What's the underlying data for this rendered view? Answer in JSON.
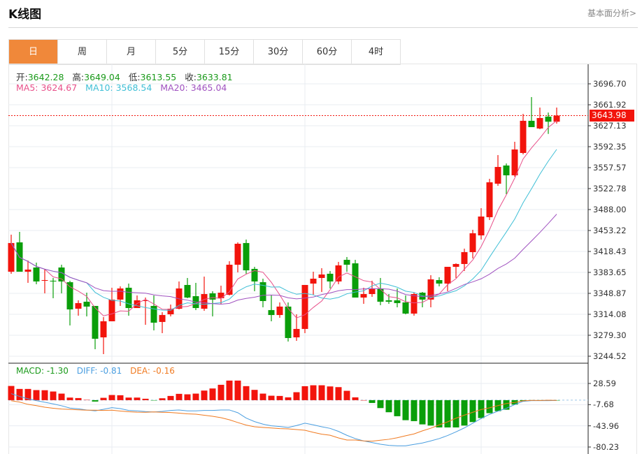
{
  "header": {
    "title": "K线图",
    "fundamental_link": "基本面分析>"
  },
  "tabs": [
    {
      "label": "日",
      "active": true
    },
    {
      "label": "周",
      "active": false
    },
    {
      "label": "月",
      "active": false
    },
    {
      "label": "5分",
      "active": false
    },
    {
      "label": "15分",
      "active": false
    },
    {
      "label": "30分",
      "active": false
    },
    {
      "label": "60分",
      "active": false
    },
    {
      "label": "4时",
      "active": false
    }
  ],
  "ohlc_info": {
    "open_label": "开:",
    "open": "3642.28",
    "high_label": "高:",
    "high": "3649.04",
    "low_label": "低:",
    "low": "3613.55",
    "close_label": "收:",
    "close": "3633.81"
  },
  "ma_info": {
    "ma5": "MA5:  3624.67",
    "ma10": "MA10:  3568.54",
    "ma20": "MA20:  3465.04"
  },
  "macd_info": {
    "macd": "MACD: -1.30",
    "diff": "DIFF: -0.81",
    "dea": "DEA: -0.16"
  },
  "current_price": "3643.98",
  "colors": {
    "up": "#f2140c",
    "down": "#0a9e0a",
    "ma5": "#e8508a",
    "ma10": "#3fbfd6",
    "ma20": "#a052c0",
    "diff": "#4a9ee0",
    "dea": "#f07a20",
    "active_tab": "#f0883a"
  },
  "chart_data": [
    {
      "type": "candlestick",
      "ylim": [
        3244.52,
        3696.7
      ],
      "y_ticks": [
        "3696.70",
        "3661.92",
        "3627.13",
        "3592.35",
        "3557.57",
        "3522.78",
        "3488.00",
        "3453.22",
        "3418.43",
        "3383.65",
        "3348.87",
        "3314.08",
        "3279.30",
        "3244.52"
      ],
      "grid": true,
      "ohlc": [
        [
          3384.8,
          3432.4,
          3446.3,
          3381.4
        ],
        [
          3433.5,
          3384.8,
          3450.9,
          3384.8
        ],
        [
          3384.8,
          3388.3,
          3403.4,
          3366.3
        ],
        [
          3391.8,
          3368.6,
          3399.9,
          3364.0
        ],
        [
          3369.8,
          3370.9,
          3389.5,
          3348.9
        ],
        [
          3369.8,
          3368.6,
          3374.4,
          3340.8
        ],
        [
          3391.8,
          3368.6,
          3396.4,
          3348.9
        ],
        [
          3367.4,
          3322.2,
          3369.8,
          3295.6
        ],
        [
          3323.4,
          3332.7,
          3337.3,
          3311.8
        ],
        [
          3335.0,
          3326.9,
          3350.0,
          3310.6
        ],
        [
          3328.0,
          3273.5,
          3328.0,
          3256.1
        ],
        [
          3275.8,
          3302.5,
          3309.5,
          3248.0
        ],
        [
          3302.5,
          3338.5,
          3358.2,
          3302.5
        ],
        [
          3338.5,
          3357.0,
          3360.5,
          3328.0
        ],
        [
          3358.2,
          3324.5,
          3365.1,
          3311.8
        ],
        [
          3324.5,
          3337.3,
          3345.4,
          3324.5
        ],
        [
          3336.1,
          3337.3,
          3341.9,
          3296.7
        ],
        [
          3328.0,
          3300.2,
          3345.4,
          3287.4
        ],
        [
          3301.4,
          3312.9,
          3317.6,
          3282.8
        ],
        [
          3314.1,
          3323.4,
          3330.3,
          3310.6
        ],
        [
          3323.4,
          3357.0,
          3368.6,
          3322.2
        ],
        [
          3362.8,
          3341.9,
          3374.4,
          3340.8
        ],
        [
          3344.2,
          3324.5,
          3366.3,
          3321.1
        ],
        [
          3323.4,
          3347.7,
          3376.7,
          3319.9
        ],
        [
          3348.9,
          3338.5,
          3352.4,
          3310.6
        ],
        [
          3340.8,
          3350.0,
          3361.6,
          3331.5
        ],
        [
          3346.6,
          3396.4,
          3402.2,
          3345.4
        ],
        [
          3396.4,
          3431.2,
          3433.5,
          3383.7
        ],
        [
          3432.4,
          3387.1,
          3438.2,
          3381.4
        ],
        [
          3389.5,
          3368.6,
          3392.9,
          3352.4
        ],
        [
          3367.4,
          3336.1,
          3373.2,
          3325.7
        ],
        [
          3321.1,
          3312.9,
          3345.4,
          3302.5
        ],
        [
          3312.9,
          3326.9,
          3333.8,
          3308.3
        ],
        [
          3326.9,
          3274.7,
          3333.8,
          3268.9
        ],
        [
          3275.8,
          3289.8,
          3314.1,
          3270.0
        ],
        [
          3289.8,
          3362.8,
          3362.8,
          3282.8
        ],
        [
          3365.1,
          3373.2,
          3384.8,
          3346.6
        ],
        [
          3374.4,
          3380.2,
          3390.6,
          3351.2
        ],
        [
          3381.4,
          3368.6,
          3386.0,
          3357.0
        ],
        [
          3368.6,
          3395.3,
          3401.1,
          3364.0
        ],
        [
          3404.5,
          3396.4,
          3409.2,
          3384.8
        ],
        [
          3398.7,
          3341.9,
          3404.5,
          3341.9
        ],
        [
          3341.9,
          3347.7,
          3358.2,
          3331.5
        ],
        [
          3347.7,
          3357.0,
          3369.8,
          3343.1
        ],
        [
          3357.0,
          3335.0,
          3374.4,
          3329.2
        ],
        [
          3337.3,
          3335.0,
          3347.7,
          3331.5
        ],
        [
          3337.3,
          3332.7,
          3357.0,
          3325.7
        ],
        [
          3333.8,
          3315.3,
          3345.4,
          3314.1
        ],
        [
          3315.3,
          3347.7,
          3350.0,
          3311.8
        ],
        [
          3350.0,
          3338.5,
          3351.2,
          3325.7
        ],
        [
          3338.5,
          3372.1,
          3379.0,
          3325.7
        ],
        [
          3370.9,
          3365.1,
          3375.6,
          3360.5
        ],
        [
          3365.1,
          3392.9,
          3392.9,
          3352.4
        ],
        [
          3392.9,
          3397.6,
          3398.7,
          3374.4
        ],
        [
          3397.6,
          3417.3,
          3423.1,
          3386.0
        ],
        [
          3417.3,
          3448.6,
          3454.4,
          3406.9
        ],
        [
          3445.1,
          3476.4,
          3490.3,
          3438.2
        ],
        [
          3475.3,
          3533.2,
          3539.0,
          3470.6
        ],
        [
          3530.9,
          3558.7,
          3578.4,
          3527.4
        ],
        [
          3561.1,
          3544.8,
          3564.5,
          3513.5
        ],
        [
          3544.8,
          3587.7,
          3600.5,
          3542.5
        ],
        [
          3581.9,
          3635.3,
          3646.8,
          3579.6
        ],
        [
          3635.3,
          3624.8,
          3674.7,
          3624.8
        ],
        [
          3622.5,
          3639.9,
          3657.3,
          3621.3
        ],
        [
          3642.28,
          3633.81,
          3649.04,
          3613.55
        ],
        [
          3633.8,
          3643.98,
          3657.3,
          3630.6
        ]
      ],
      "ma_periods": [
        5,
        10,
        20
      ]
    },
    {
      "type": "macd",
      "ylim": [
        -80.23,
        28.59
      ],
      "y_ticks": [
        "28.59",
        "-7.68",
        "-43.96",
        "-80.23"
      ],
      "macd": [
        24.3,
        19.2,
        19.2,
        17.2,
        17.0,
        14.8,
        11.2,
        4.4,
        3.6,
        0.5,
        -2.4,
        4.0,
        8.8,
        8.4,
        4.4,
        4.4,
        2.4,
        -0.3,
        3.2,
        7.2,
        10.8,
        10.0,
        11.2,
        16.4,
        20.0,
        26.3,
        33.5,
        33.5,
        24.0,
        17.6,
        11.2,
        7.6,
        7.2,
        4.8,
        13.6,
        23.9,
        25.5,
        25.5,
        23.5,
        22.3,
        16.0,
        4.8,
        0.0,
        -4.8,
        -13.6,
        -20.7,
        -27.5,
        -34.3,
        -35.9,
        -41.5,
        -43.5,
        -46.7,
        -46.7,
        -46.7,
        -43.5,
        -37.5,
        -30.7,
        -22.3,
        -18.8,
        -16.4,
        -7.6,
        -1.6,
        -0.8,
        -0.4,
        -1.3,
        -0.3
      ],
      "diff": [
        11.2,
        6.4,
        2.4,
        -0.8,
        -3.6,
        -6.4,
        -9.6,
        -13.6,
        -14.8,
        -16.8,
        -18.4,
        -15.6,
        -12.8,
        -14.4,
        -17.6,
        -18.4,
        -19.6,
        -20.3,
        -19.2,
        -17.6,
        -16.8,
        -18.4,
        -18.4,
        -17.6,
        -17.6,
        -16.8,
        -16.8,
        -21.5,
        -30.7,
        -36.7,
        -41.1,
        -43.9,
        -45.1,
        -46.7,
        -43.5,
        -39.5,
        -42.3,
        -45.5,
        -48.3,
        -53.5,
        -60.2,
        -65.8,
        -69.8,
        -72.6,
        -75.4,
        -77.4,
        -78.2,
        -78.2,
        -75.8,
        -73.4,
        -69.8,
        -65.8,
        -60.6,
        -54.3,
        -47.5,
        -39.5,
        -31.5,
        -24.3,
        -18.8,
        -14.0,
        -7.6,
        -2.0,
        -0.8,
        -0.8,
        -0.81,
        -0.5
      ],
      "dea": [
        -1.0,
        -3.2,
        -7.2,
        -9.4,
        -12.1,
        -13.8,
        -15.2,
        -15.8,
        -16.6,
        -17.1,
        -17.2,
        -17.6,
        -17.2,
        -18.6,
        -19.8,
        -20.6,
        -20.8,
        -20.2,
        -20.8,
        -21.2,
        -22.2,
        -23.4,
        -24.0,
        -25.8,
        -27.6,
        -30.0,
        -33.6,
        -38.3,
        -42.7,
        -45.5,
        -46.7,
        -47.7,
        -48.7,
        -49.1,
        -50.3,
        -51.5,
        -55.1,
        -58.3,
        -60.1,
        -64.7,
        -68.2,
        -68.2,
        -69.8,
        -70.2,
        -68.6,
        -67.0,
        -64.4,
        -61.0,
        -57.8,
        -52.6,
        -48.0,
        -42.4,
        -37.2,
        -30.9,
        -25.7,
        -20.7,
        -16.1,
        -13.1,
        -9.4,
        -5.8,
        -3.8,
        -1.2,
        -0.4,
        -0.6,
        -0.16,
        -0.35
      ]
    }
  ]
}
